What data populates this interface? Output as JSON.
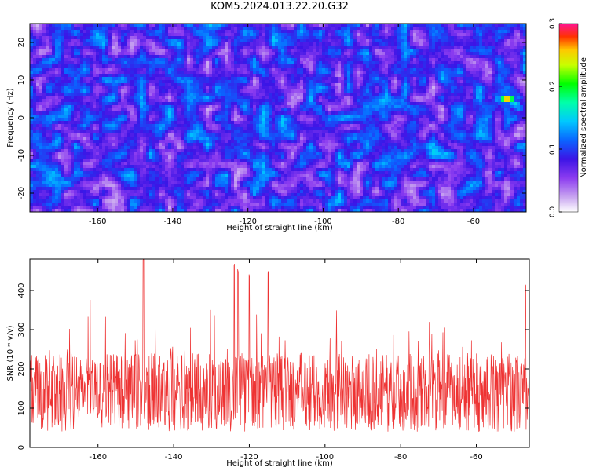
{
  "page_title": "KOM5.2024.013.22.20.G32",
  "spectrogram": {
    "ylabel": "Frequency (Hz)",
    "xlabel": "Height of straight line (km)",
    "xlim": [
      -178,
      -46
    ],
    "ylim": [
      -25,
      25
    ],
    "xticks": [
      -160,
      -140,
      -120,
      -100,
      -80,
      -60
    ],
    "yticks": [
      -20,
      -10,
      0,
      10,
      20
    ],
    "colormap": [
      "#ffffff",
      "#c8a4f0",
      "#8c3cf0",
      "#5a14e6",
      "#1e1ee6",
      "#0a64ff",
      "#00c8ff",
      "#00ffc8",
      "#00ff00",
      "#ffff00",
      "#ff8000",
      "#ff0000",
      "#ff1493"
    ]
  },
  "colorbar": {
    "label": "Normalized spectral amplitude",
    "range": [
      0,
      0.3
    ],
    "ticks": [
      "0.0",
      "0.1",
      "0.2",
      "0.3"
    ]
  },
  "snr_plot": {
    "ylabel": "SNR (10 * v/v)",
    "xlabel": "Height of straight line (km)",
    "xlim": [
      -178,
      -46
    ],
    "ylim": [
      0,
      480
    ],
    "xticks": [
      -160,
      -140,
      -120,
      -100,
      -80,
      -60
    ],
    "yticks": [
      0,
      100,
      200,
      300,
      400
    ],
    "line_color": "#ee3333"
  },
  "chart_data": [
    {
      "type": "heatmap",
      "title": "KOM5.2024.013.22.20.G32",
      "xlabel": "Height of straight line (km)",
      "ylabel": "Frequency (Hz)",
      "xlim": [
        -178,
        -46
      ],
      "ylim": [
        -25,
        25
      ],
      "value_range": [
        0,
        0.3
      ],
      "hotspots": [
        {
          "x": -51,
          "y": 5,
          "value": 0.29
        },
        {
          "x": -49,
          "y": 3.5,
          "value": 0.16
        },
        {
          "x": -48,
          "y": 2.5,
          "value": 0.14
        },
        {
          "x": -115,
          "y": -2.5,
          "value": 0.12
        },
        {
          "x": -110,
          "y": 2,
          "value": 0.11
        },
        {
          "x": -155,
          "y": -2,
          "value": 0.12
        },
        {
          "x": -126,
          "y": 21,
          "value": 0.1
        },
        {
          "x": -97,
          "y": 10,
          "value": 0.09
        },
        {
          "x": -112,
          "y": 0.5,
          "value": 0.09
        }
      ]
    },
    {
      "type": "line",
      "title": "",
      "xlabel": "Height of straight line (km)",
      "ylabel": "SNR (10 * v/v)",
      "xlim": [
        -178,
        -46
      ],
      "ylim": [
        0,
        480
      ],
      "baseline_mean": 140,
      "peaks": [
        {
          "x": -148,
          "y": 480
        },
        {
          "x": -124,
          "y": 470
        },
        {
          "x": -123,
          "y": 455
        },
        {
          "x": -120,
          "y": 445
        },
        {
          "x": -115,
          "y": 450
        },
        {
          "x": -47,
          "y": 420
        }
      ]
    }
  ]
}
